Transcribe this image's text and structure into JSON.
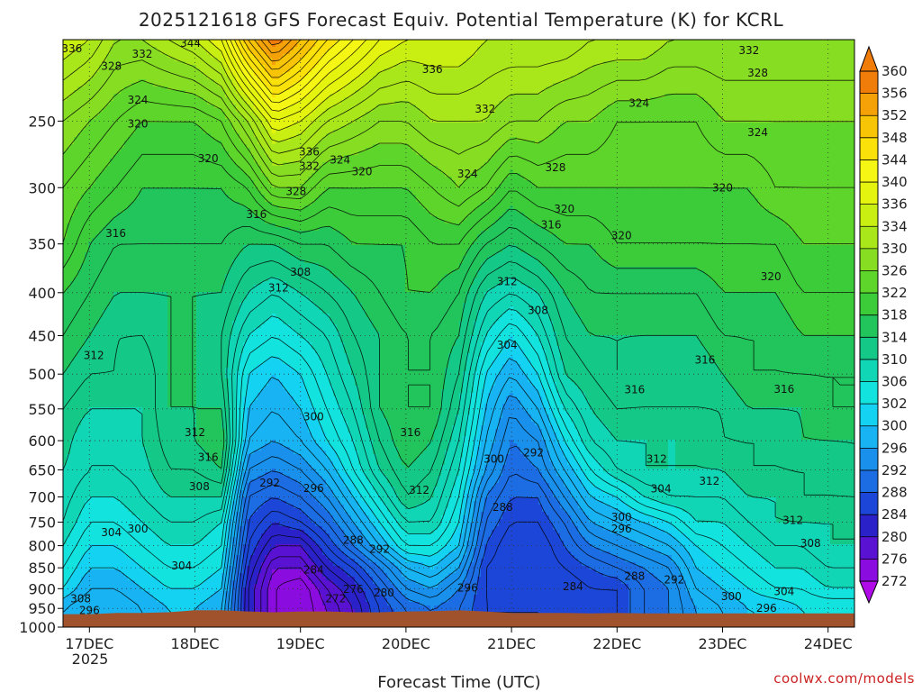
{
  "chart_data": {
    "type": "heatmap",
    "title": "2025121618 GFS Forecast Equiv. Potential Temperature (K) for KCRL",
    "xlabel": "Forecast Time (UTC)",
    "ylabel": "",
    "x_ticks": [
      "17DEC",
      "18DEC",
      "19DEC",
      "20DEC",
      "21DEC",
      "22DEC",
      "23DEC",
      "24DEC"
    ],
    "x_tick_hours": [
      6,
      30,
      54,
      78,
      102,
      126,
      150,
      174
    ],
    "x_year_label": "2025",
    "x_range_hours": [
      0,
      180
    ],
    "y_ticks": [
      250,
      300,
      350,
      400,
      450,
      500,
      550,
      600,
      650,
      700,
      750,
      800,
      850,
      900,
      950,
      1000
    ],
    "y_range": [
      200,
      1000
    ],
    "y_scale": "log",
    "grid": true,
    "colorbar_ticks": [
      360,
      356,
      352,
      348,
      344,
      340,
      336,
      334,
      330,
      326,
      322,
      318,
      314,
      310,
      306,
      302,
      300,
      296,
      292,
      288,
      284,
      280,
      276,
      272
    ],
    "colorbar_colors": [
      "#f07c0a",
      "#f4a208",
      "#f8c406",
      "#fbe10a",
      "#f6f614",
      "#e4f40e",
      "#c9ee12",
      "#a9e61a",
      "#86dd22",
      "#5ed52a",
      "#3ccc3a",
      "#22c55c",
      "#14c987",
      "#10d6b6",
      "#12e3de",
      "#14d3f2",
      "#18b3f2",
      "#1890ec",
      "#1c6ce4",
      "#1c46d8",
      "#2a22c8",
      "#5a12d2",
      "#8a0cde",
      "#b00ae8"
    ],
    "ground_color": "#a0522d",
    "series": [
      {
        "name": "",
        "x": [
          0,
          6,
          12,
          18,
          24,
          30,
          36,
          42,
          48,
          54,
          60,
          66,
          72,
          78,
          84,
          90,
          96,
          102,
          108,
          114,
          120,
          126,
          132,
          138,
          144,
          150,
          156,
          162,
          168,
          174,
          180
        ],
        "levels": [
          200,
          250,
          300,
          350,
          400,
          450,
          500,
          550,
          600,
          650,
          700,
          750,
          800,
          850,
          900,
          950
        ],
        "z": [
          [
            336,
            328,
            324,
            322,
            318,
            316,
            314,
            312,
            311,
            310,
            309,
            308,
            306,
            304,
            302,
            298
          ],
          [
            334,
            326,
            322,
            318,
            316,
            314,
            312,
            310,
            308,
            308,
            306,
            304,
            302,
            300,
            298,
            296
          ],
          [
            330,
            324,
            320,
            316,
            314,
            312,
            312,
            310,
            308,
            308,
            306,
            304,
            302,
            300,
            298,
            296
          ],
          [
            330,
            322,
            318,
            316,
            314,
            312,
            310,
            310,
            310,
            309,
            308,
            306,
            304,
            302,
            300,
            298
          ],
          [
            332,
            322,
            318,
            316,
            314,
            314,
            314,
            314,
            313,
            312,
            310,
            308,
            306,
            304,
            302,
            300
          ],
          [
            334,
            322,
            318,
            316,
            314,
            314,
            314,
            314,
            314,
            312,
            310,
            308,
            306,
            304,
            302,
            300
          ],
          [
            338,
            324,
            318,
            316,
            314,
            312,
            312,
            314,
            316,
            314,
            310,
            306,
            304,
            302,
            300,
            298
          ],
          [
            350,
            330,
            320,
            314,
            310,
            306,
            302,
            300,
            298,
            294,
            290,
            288,
            286,
            284,
            282,
            282
          ],
          [
            358,
            338,
            326,
            314,
            308,
            304,
            300,
            298,
            296,
            292,
            288,
            284,
            280,
            276,
            274,
            274
          ],
          [
            352,
            336,
            326,
            316,
            310,
            306,
            302,
            300,
            298,
            294,
            290,
            286,
            280,
            276,
            272,
            272
          ],
          [
            346,
            332,
            322,
            316,
            312,
            308,
            306,
            304,
            302,
            298,
            294,
            290,
            286,
            282,
            278,
            276
          ],
          [
            342,
            330,
            322,
            318,
            314,
            312,
            310,
            308,
            306,
            304,
            300,
            296,
            292,
            286,
            282,
            280
          ],
          [
            338,
            328,
            322,
            318,
            316,
            314,
            314,
            314,
            312,
            310,
            306,
            302,
            298,
            292,
            288,
            286
          ],
          [
            336,
            328,
            322,
            318,
            318,
            316,
            316,
            316,
            316,
            314,
            312,
            308,
            304,
            298,
            294,
            290
          ],
          [
            336,
            330,
            324,
            320,
            318,
            316,
            316,
            316,
            314,
            312,
            310,
            308,
            304,
            300,
            296,
            292
          ],
          [
            336,
            330,
            326,
            320,
            316,
            314,
            312,
            310,
            308,
            306,
            304,
            302,
            300,
            296,
            292,
            290
          ],
          [
            334,
            330,
            324,
            316,
            310,
            306,
            302,
            300,
            298,
            296,
            292,
            290,
            288,
            286,
            286,
            286
          ],
          [
            334,
            328,
            320,
            314,
            308,
            302,
            298,
            294,
            292,
            290,
            288,
            286,
            284,
            284,
            284,
            286
          ],
          [
            334,
            328,
            322,
            316,
            310,
            306,
            302,
            298,
            294,
            292,
            288,
            286,
            284,
            284,
            284,
            286
          ],
          [
            334,
            326,
            322,
            318,
            314,
            312,
            310,
            306,
            302,
            298,
            294,
            290,
            288,
            286,
            284,
            284
          ],
          [
            332,
            326,
            322,
            318,
            316,
            314,
            312,
            310,
            308,
            304,
            300,
            296,
            292,
            288,
            286,
            284
          ],
          [
            332,
            324,
            322,
            320,
            316,
            314,
            314,
            312,
            310,
            308,
            302,
            298,
            294,
            290,
            286,
            286
          ],
          [
            332,
            324,
            322,
            320,
            316,
            314,
            312,
            312,
            310,
            310,
            306,
            300,
            296,
            292,
            290,
            290
          ],
          [
            330,
            324,
            322,
            320,
            316,
            314,
            312,
            312,
            310,
            310,
            308,
            302,
            298,
            294,
            292,
            292
          ],
          [
            330,
            324,
            322,
            320,
            316,
            314,
            312,
            312,
            310,
            310,
            308,
            306,
            302,
            300,
            298,
            296
          ],
          [
            330,
            326,
            322,
            320,
            318,
            316,
            314,
            312,
            312,
            310,
            308,
            306,
            304,
            302,
            300,
            298
          ],
          [
            330,
            326,
            322,
            320,
            318,
            316,
            316,
            314,
            312,
            312,
            310,
            308,
            306,
            304,
            302,
            300
          ],
          [
            330,
            326,
            324,
            320,
            318,
            316,
            316,
            314,
            312,
            312,
            310,
            310,
            308,
            306,
            304,
            300
          ],
          [
            330,
            326,
            324,
            322,
            320,
            318,
            316,
            314,
            314,
            312,
            312,
            310,
            308,
            306,
            304,
            302
          ],
          [
            330,
            326,
            324,
            322,
            320,
            318,
            316,
            316,
            314,
            312,
            312,
            310,
            310,
            308,
            306,
            302
          ],
          [
            330,
            326,
            324,
            322,
            320,
            318,
            316,
            316,
            314,
            314,
            312,
            310,
            310,
            308,
            306,
            302
          ]
        ]
      }
    ],
    "contour_labels": [
      {
        "text": "336",
        "hour": 2,
        "p": 205
      },
      {
        "text": "328",
        "hour": 11,
        "p": 215
      },
      {
        "text": "332",
        "hour": 18,
        "p": 208
      },
      {
        "text": "344",
        "hour": 29,
        "p": 202
      },
      {
        "text": "324",
        "hour": 17,
        "p": 236
      },
      {
        "text": "320",
        "hour": 17,
        "p": 252
      },
      {
        "text": "320",
        "hour": 33,
        "p": 277
      },
      {
        "text": "336",
        "hour": 56,
        "p": 272
      },
      {
        "text": "324",
        "hour": 63,
        "p": 278
      },
      {
        "text": "332",
        "hour": 56,
        "p": 283
      },
      {
        "text": "320",
        "hour": 68,
        "p": 287
      },
      {
        "text": "336",
        "hour": 84,
        "p": 217
      },
      {
        "text": "332",
        "hour": 96,
        "p": 242
      },
      {
        "text": "324",
        "hour": 92,
        "p": 289
      },
      {
        "text": "328",
        "hour": 112,
        "p": 284
      },
      {
        "text": "324",
        "hour": 131,
        "p": 238
      },
      {
        "text": "332",
        "hour": 156,
        "p": 206
      },
      {
        "text": "328",
        "hour": 158,
        "p": 219
      },
      {
        "text": "324",
        "hour": 158,
        "p": 258
      },
      {
        "text": "328",
        "hour": 53,
        "p": 303
      },
      {
        "text": "316",
        "hour": 44,
        "p": 323
      },
      {
        "text": "316",
        "hour": 12,
        "p": 340
      },
      {
        "text": "320",
        "hour": 114,
        "p": 318
      },
      {
        "text": "316",
        "hour": 111,
        "p": 332
      },
      {
        "text": "320",
        "hour": 127,
        "p": 342
      },
      {
        "text": "320",
        "hour": 150,
        "p": 300
      },
      {
        "text": "320",
        "hour": 161,
        "p": 383
      },
      {
        "text": "308",
        "hour": 54,
        "p": 378
      },
      {
        "text": "312",
        "hour": 49,
        "p": 395
      },
      {
        "text": "312",
        "hour": 101,
        "p": 388
      },
      {
        "text": "308",
        "hour": 108,
        "p": 420
      },
      {
        "text": "304",
        "hour": 101,
        "p": 462
      },
      {
        "text": "312",
        "hour": 7,
        "p": 475
      },
      {
        "text": "316",
        "hour": 146,
        "p": 481
      },
      {
        "text": "316",
        "hour": 164,
        "p": 521
      },
      {
        "text": "316",
        "hour": 130,
        "p": 522
      },
      {
        "text": "300",
        "hour": 57,
        "p": 562
      },
      {
        "text": "312",
        "hour": 30,
        "p": 587
      },
      {
        "text": "316",
        "hour": 79,
        "p": 587
      },
      {
        "text": "316",
        "hour": 33,
        "p": 628
      },
      {
        "text": "292",
        "hour": 107,
        "p": 620
      },
      {
        "text": "300",
        "hour": 98,
        "p": 631
      },
      {
        "text": "312",
        "hour": 135,
        "p": 631
      },
      {
        "text": "308",
        "hour": 31,
        "p": 680
      },
      {
        "text": "292",
        "hour": 47,
        "p": 674
      },
      {
        "text": "296",
        "hour": 57,
        "p": 684
      },
      {
        "text": "312",
        "hour": 81,
        "p": 687
      },
      {
        "text": "304",
        "hour": 136,
        "p": 685
      },
      {
        "text": "312",
        "hour": 147,
        "p": 670
      },
      {
        "text": "288",
        "hour": 100,
        "p": 720
      },
      {
        "text": "300",
        "hour": 127,
        "p": 740
      },
      {
        "text": "296",
        "hour": 127,
        "p": 764
      },
      {
        "text": "312",
        "hour": 166,
        "p": 746
      },
      {
        "text": "304",
        "hour": 11,
        "p": 772
      },
      {
        "text": "300",
        "hour": 17,
        "p": 764
      },
      {
        "text": "288",
        "hour": 66,
        "p": 788
      },
      {
        "text": "292",
        "hour": 72,
        "p": 808
      },
      {
        "text": "308",
        "hour": 170,
        "p": 795
      },
      {
        "text": "304",
        "hour": 27,
        "p": 845
      },
      {
        "text": "284",
        "hour": 57,
        "p": 855
      },
      {
        "text": "288",
        "hour": 130,
        "p": 870
      },
      {
        "text": "292",
        "hour": 139,
        "p": 878
      },
      {
        "text": "284",
        "hour": 116,
        "p": 895
      },
      {
        "text": "276",
        "hour": 66,
        "p": 902
      },
      {
        "text": "280",
        "hour": 73,
        "p": 910
      },
      {
        "text": "272",
        "hour": 62,
        "p": 925
      },
      {
        "text": "296",
        "hour": 92,
        "p": 898
      },
      {
        "text": "304",
        "hour": 164,
        "p": 907
      },
      {
        "text": "300",
        "hour": 152,
        "p": 920
      },
      {
        "text": "308",
        "hour": 4,
        "p": 925
      },
      {
        "text": "296",
        "hour": 6,
        "p": 955
      },
      {
        "text": "296",
        "hour": 160,
        "p": 950
      }
    ],
    "ground_surface_p": [
      965,
      965,
      962,
      962,
      960,
      955,
      955,
      958,
      960,
      958,
      958,
      960,
      960,
      958,
      957,
      955,
      958,
      962,
      962,
      962,
      963,
      962,
      963,
      963,
      963,
      963,
      963,
      963,
      963,
      963,
      963
    ],
    "colorbar_extend": "both"
  },
  "credit": "coolwx.com/models"
}
